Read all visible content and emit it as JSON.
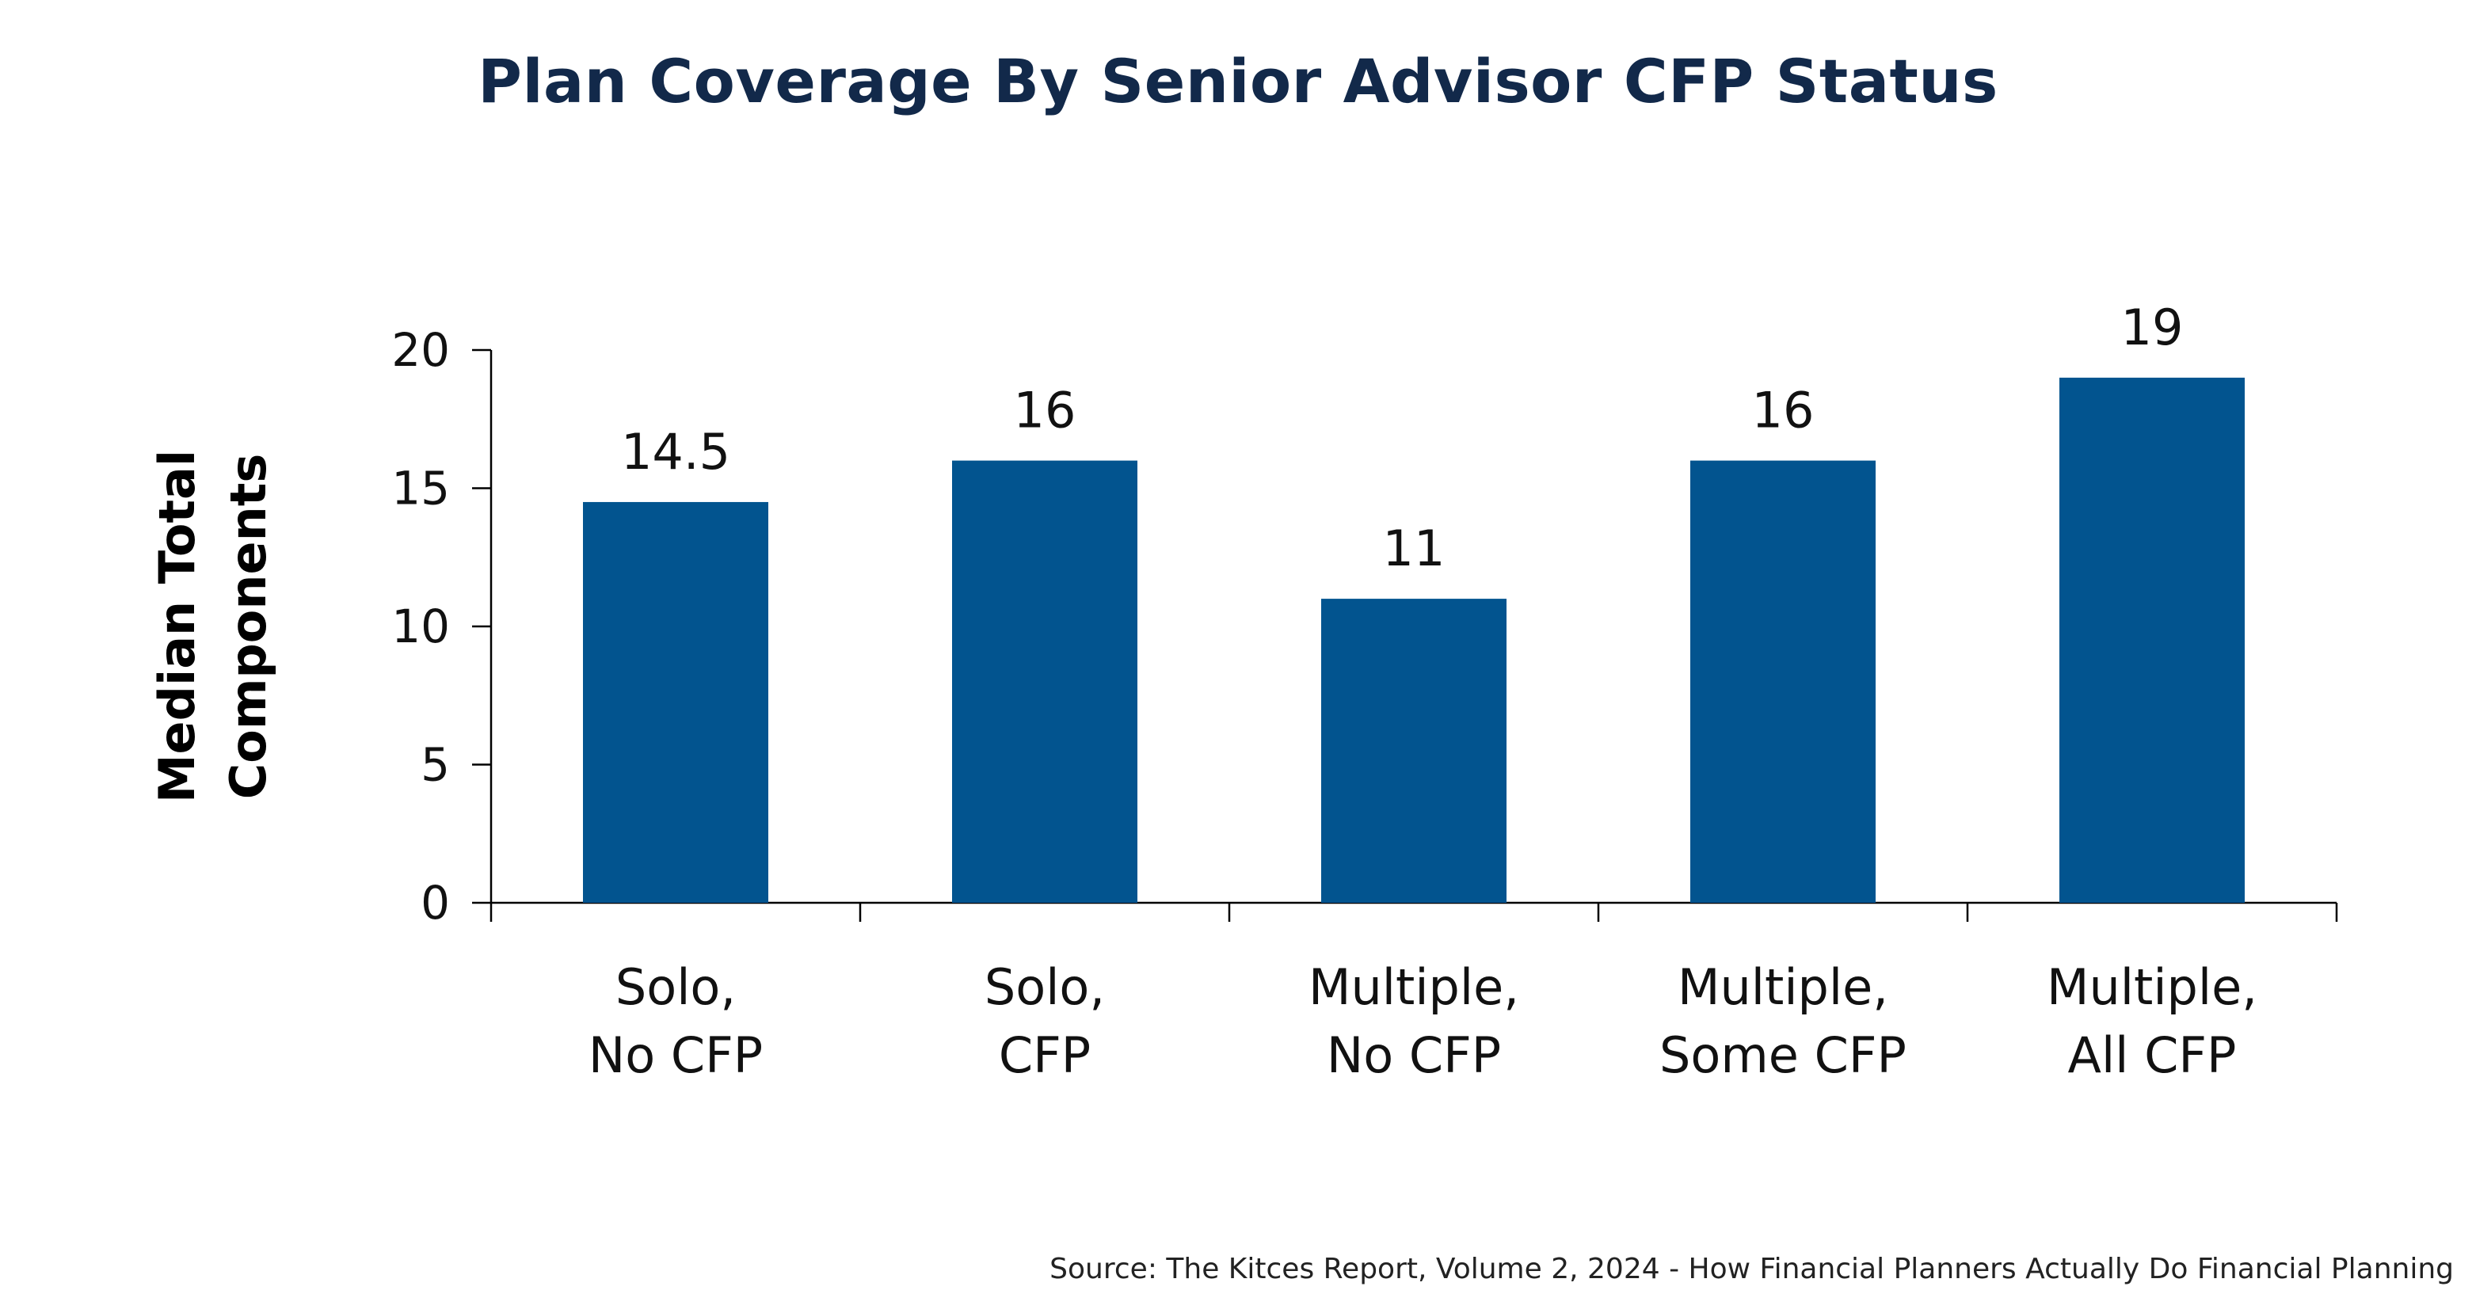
{
  "chart_data": {
    "type": "bar",
    "title": "Plan Coverage By Senior Advisor CFP Status",
    "ylabel": [
      "Median Total",
      "Components"
    ],
    "xlabel": "",
    "categories": [
      [
        "Solo,",
        "No CFP"
      ],
      [
        "Solo,",
        "CFP"
      ],
      [
        "Multiple,",
        "No CFP"
      ],
      [
        "Multiple,",
        "Some CFP"
      ],
      [
        "Multiple,",
        "All CFP"
      ]
    ],
    "values": [
      14.5,
      16,
      11,
      16,
      19
    ],
    "data_labels": [
      "14.5",
      "16",
      "11",
      "16",
      "19"
    ],
    "ylim": [
      0,
      20
    ],
    "yticks": [
      0,
      5,
      10,
      15,
      20
    ],
    "grid": false,
    "legend": "none",
    "bar_color": "#02548f",
    "source": "Source: The Kitces Report, Volume 2, 2024 - How Financial Planners Actually Do Financial Planning"
  },
  "colors": {
    "title": "#12294a",
    "bar": "#02548f",
    "axis": "#000000"
  }
}
